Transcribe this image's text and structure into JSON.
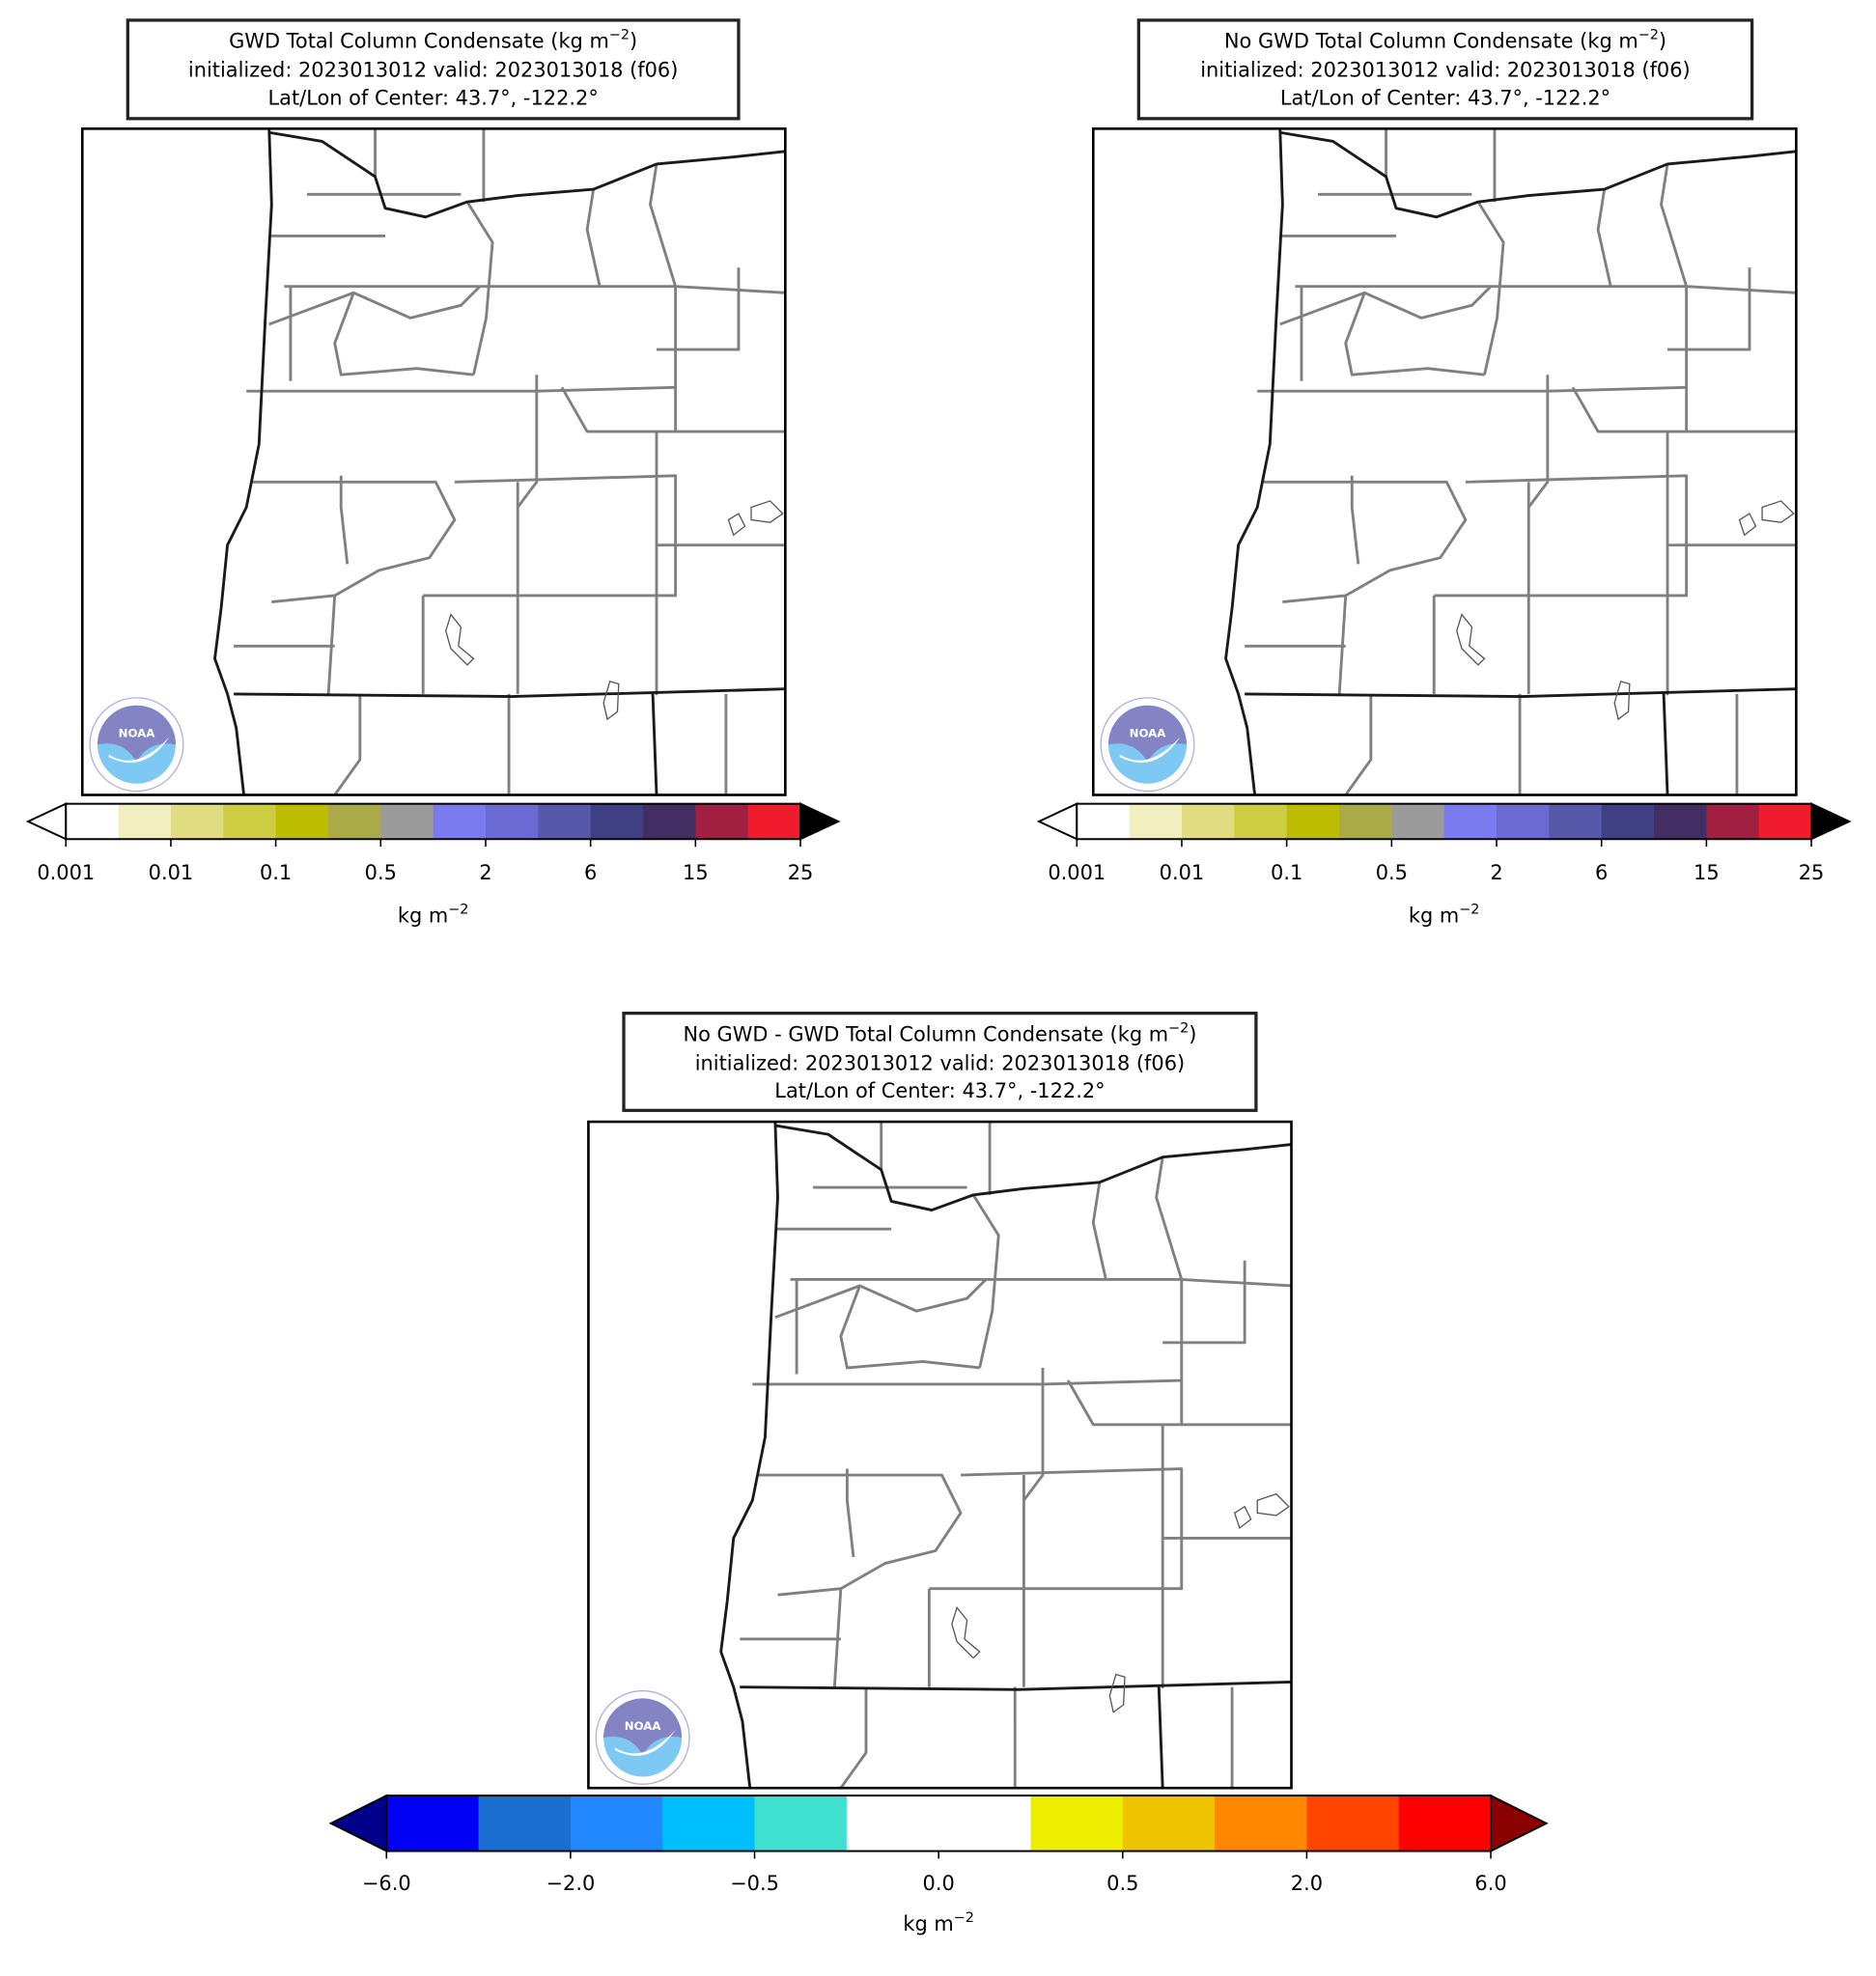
{
  "panels": [
    {
      "title": {
        "line1_text": "GWD Total Column Condensate (kg m",
        "line1_exp": "−2",
        "line1_end": ")",
        "line2": "initialized: 2023013012 valid: 2023013018 (f06)",
        "line3": "Lat/Lon of Center: 43.7°, -122.2°"
      },
      "colorbar": {
        "ticks": [
          "0.001",
          "0.01",
          "0.1",
          "0.5",
          "2",
          "6",
          "15",
          "25"
        ],
        "colors": [
          "#ffffff",
          "#f1eebf",
          "#e0dc82",
          "#cdcd42",
          "#bcbc00",
          "#aaaa48",
          "#9b9b9b",
          "#7b7bef",
          "#6a6ad2",
          "#5858ab",
          "#3f3f83",
          "#432e63",
          "#a11f40",
          "#f01b2c"
        ],
        "extend_colors": [
          "#ffffff",
          "#000000"
        ],
        "label_text": "kg m",
        "label_exp": "−2"
      }
    },
    {
      "title": {
        "line1_text": "No GWD Total Column Condensate (kg m",
        "line1_exp": "−2",
        "line1_end": ")",
        "line2": "initialized: 2023013012 valid: 2023013018 (f06)",
        "line3": "Lat/Lon of Center: 43.7°, -122.2°"
      },
      "colorbar": {
        "ticks": [
          "0.001",
          "0.01",
          "0.1",
          "0.5",
          "2",
          "6",
          "15",
          "25"
        ],
        "colors": [
          "#ffffff",
          "#f1eebf",
          "#e0dc82",
          "#cdcd42",
          "#bcbc00",
          "#aaaa48",
          "#9b9b9b",
          "#7b7bef",
          "#6a6ad2",
          "#5858ab",
          "#3f3f83",
          "#432e63",
          "#a11f40",
          "#f01b2c"
        ],
        "extend_colors": [
          "#ffffff",
          "#000000"
        ],
        "label_text": "kg m",
        "label_exp": "−2"
      }
    },
    {
      "title": {
        "line1_text": "No GWD - GWD Total Column Condensate (kg m",
        "line1_exp": "−2",
        "line1_end": ")",
        "line2": "initialized: 2023013012 valid: 2023013018 (f06)",
        "line3": "Lat/Lon of Center: 43.7°, -122.2°"
      },
      "colorbar": {
        "ticks": [
          "−6.0",
          "−2.0",
          "−0.5",
          "0.0",
          "0.5",
          "2.0",
          "6.0"
        ],
        "colors": [
          "#0000f5",
          "#1a6fd0",
          "#2288ff",
          "#00bfff",
          "#40e0d0",
          "#ffffff",
          "#ffffff",
          "#eeee00",
          "#eec400",
          "#ff8800",
          "#ff4500",
          "#ff0000"
        ],
        "extend_colors": [
          "#00008b",
          "#8b0000"
        ],
        "label_text": "kg m",
        "label_exp": "−2"
      }
    }
  ]
}
